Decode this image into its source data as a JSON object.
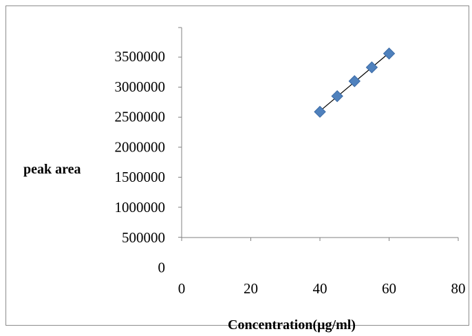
{
  "chart_data": {
    "type": "scatter",
    "title": "",
    "xlabel": "Concentration(µg/ml)",
    "ylabel": "peak area",
    "x_ticks": [
      0,
      20,
      40,
      60,
      80
    ],
    "y_ticks": [
      0,
      500000,
      1000000,
      1500000,
      2000000,
      2500000,
      3000000,
      3500000
    ],
    "xlim": [
      0,
      80
    ],
    "ylim": [
      0,
      4000000
    ],
    "grid": false,
    "legend": "none",
    "trendline": "linear",
    "series": [
      {
        "marker": "diamond",
        "color": "#4f81bd",
        "x": [
          40,
          45,
          50,
          55,
          60
        ],
        "y": [
          2590000,
          2850000,
          3100000,
          3330000,
          3560000
        ]
      }
    ]
  }
}
